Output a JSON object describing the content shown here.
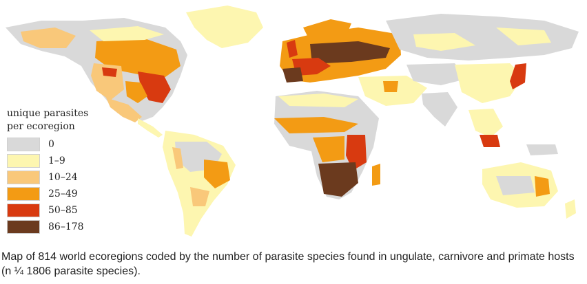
{
  "legend": {
    "title_line1": "unique parasites",
    "title_line2": "per ecoregion",
    "items": [
      {
        "label": "0",
        "color": "#d9d9d9"
      },
      {
        "label": "1–9",
        "color": "#fdf6b0"
      },
      {
        "label": "10–24",
        "color": "#f9c87a"
      },
      {
        "label": "25–49",
        "color": "#f39b14"
      },
      {
        "label": "50–85",
        "color": "#d83a10"
      },
      {
        "label": "86–178",
        "color": "#6b3a1e"
      }
    ]
  },
  "caption": "Map of 814 world ecoregions coded by the number of parasite species found in ungulate, carnivore and primate hosts (n ¼ 1806 parasite species)."
}
